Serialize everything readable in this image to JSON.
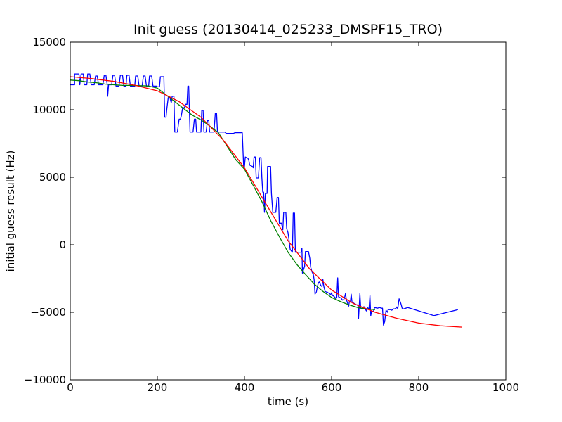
{
  "chart_data": {
    "type": "line",
    "title": "Init guess (20130414_025233_DMSPF15_TRO)",
    "xlabel": "time (s)",
    "ylabel": "initial guess result (Hz)",
    "xlim": [
      0,
      1000
    ],
    "ylim": [
      -10000,
      15000
    ],
    "x_ticks": [
      0,
      200,
      400,
      600,
      800,
      1000
    ],
    "x_tick_labels": [
      "0",
      "200",
      "400",
      "600",
      "800",
      "1000"
    ],
    "y_ticks": [
      -10000,
      -5000,
      0,
      5000,
      10000,
      15000
    ],
    "y_tick_labels": [
      "−10000",
      "−5000",
      "0",
      "5000",
      "10000",
      "15000"
    ],
    "grid": false,
    "legend": "none",
    "series": [
      {
        "color": "#0000ff",
        "points": [
          [
            0,
            11850
          ],
          [
            10,
            11850
          ],
          [
            10,
            12650
          ],
          [
            20,
            12650
          ],
          [
            22,
            11850
          ],
          [
            25,
            12650
          ],
          [
            30,
            12650
          ],
          [
            32,
            11850
          ],
          [
            38,
            11850
          ],
          [
            40,
            12650
          ],
          [
            45,
            12650
          ],
          [
            48,
            11850
          ],
          [
            55,
            11850
          ],
          [
            58,
            12500
          ],
          [
            62,
            12500
          ],
          [
            65,
            11850
          ],
          [
            75,
            11850
          ],
          [
            78,
            12550
          ],
          [
            82,
            12550
          ],
          [
            85,
            11850
          ],
          [
            86,
            11000
          ],
          [
            88,
            11850
          ],
          [
            95,
            11850
          ],
          [
            98,
            12550
          ],
          [
            102,
            12550
          ],
          [
            105,
            11750
          ],
          [
            112,
            11750
          ],
          [
            115,
            12550
          ],
          [
            120,
            12550
          ],
          [
            123,
            11750
          ],
          [
            128,
            11750
          ],
          [
            130,
            12550
          ],
          [
            135,
            12550
          ],
          [
            138,
            11750
          ],
          [
            148,
            11750
          ],
          [
            150,
            12500
          ],
          [
            155,
            12500
          ],
          [
            158,
            11750
          ],
          [
            165,
            11750
          ],
          [
            168,
            12500
          ],
          [
            172,
            12500
          ],
          [
            175,
            11750
          ],
          [
            180,
            11750
          ],
          [
            182,
            12500
          ],
          [
            187,
            12500
          ],
          [
            190,
            11750
          ],
          [
            198,
            11750
          ],
          [
            200,
            11700
          ],
          [
            205,
            11700
          ],
          [
            207,
            12450
          ],
          [
            215,
            12450
          ],
          [
            217,
            9450
          ],
          [
            220,
            9450
          ],
          [
            222,
            10100
          ],
          [
            225,
            10900
          ],
          [
            228,
            11000
          ],
          [
            232,
            10500
          ],
          [
            234,
            11000
          ],
          [
            238,
            11000
          ],
          [
            240,
            8350
          ],
          [
            246,
            8350
          ],
          [
            250,
            9300
          ],
          [
            253,
            9300
          ],
          [
            255,
            9550
          ],
          [
            258,
            10150
          ],
          [
            262,
            10150
          ],
          [
            265,
            10400
          ],
          [
            268,
            10400
          ],
          [
            270,
            11750
          ],
          [
            272,
            11750
          ],
          [
            275,
            8350
          ],
          [
            282,
            8350
          ],
          [
            285,
            9300
          ],
          [
            288,
            9300
          ],
          [
            290,
            8350
          ],
          [
            300,
            8350
          ],
          [
            302,
            9950
          ],
          [
            305,
            9950
          ],
          [
            307,
            8350
          ],
          [
            312,
            8350
          ],
          [
            315,
            9200
          ],
          [
            318,
            9200
          ],
          [
            320,
            8350
          ],
          [
            330,
            8350
          ],
          [
            333,
            9750
          ],
          [
            336,
            9750
          ],
          [
            338,
            8350
          ],
          [
            355,
            8350
          ],
          [
            358,
            8250
          ],
          [
            375,
            8250
          ],
          [
            378,
            8300
          ],
          [
            395,
            8300
          ],
          [
            398,
            5800
          ],
          [
            400,
            5800
          ],
          [
            402,
            6500
          ],
          [
            405,
            6450
          ],
          [
            408,
            6400
          ],
          [
            410,
            6250
          ],
          [
            412,
            5900
          ],
          [
            415,
            5850
          ],
          [
            418,
            5800
          ],
          [
            420,
            5700
          ],
          [
            422,
            6500
          ],
          [
            425,
            6500
          ],
          [
            427,
            4950
          ],
          [
            432,
            4950
          ],
          [
            435,
            6450
          ],
          [
            438,
            6450
          ],
          [
            440,
            4950
          ],
          [
            442,
            3900
          ],
          [
            444,
            3900
          ],
          [
            446,
            2400
          ],
          [
            448,
            3800
          ],
          [
            452,
            3800
          ],
          [
            453,
            5800
          ],
          [
            460,
            5800
          ],
          [
            462,
            3800
          ],
          [
            465,
            2400
          ],
          [
            472,
            2400
          ],
          [
            475,
            3500
          ],
          [
            478,
            3500
          ],
          [
            480,
            1600
          ],
          [
            485,
            1600
          ],
          [
            488,
            1100
          ],
          [
            490,
            2400
          ],
          [
            495,
            2400
          ],
          [
            497,
            1200
          ],
          [
            500,
            900
          ],
          [
            502,
            450
          ],
          [
            505,
            -350
          ],
          [
            510,
            -550
          ],
          [
            512,
            2350
          ],
          [
            515,
            2350
          ],
          [
            517,
            -550
          ],
          [
            530,
            -550
          ],
          [
            532,
            -250
          ],
          [
            533,
            -2100
          ],
          [
            536,
            -1800
          ],
          [
            538,
            -1600
          ],
          [
            540,
            -500
          ],
          [
            547,
            -500
          ],
          [
            550,
            -1000
          ],
          [
            552,
            -1650
          ],
          [
            555,
            -2000
          ],
          [
            558,
            -2200
          ],
          [
            560,
            -2600
          ],
          [
            562,
            -3650
          ],
          [
            565,
            -3500
          ],
          [
            568,
            -3000
          ],
          [
            570,
            -2800
          ],
          [
            572,
            -2750
          ],
          [
            575,
            -3000
          ],
          [
            578,
            -3100
          ],
          [
            580,
            -2550
          ],
          [
            582,
            -3050
          ],
          [
            585,
            -3450
          ],
          [
            588,
            -3500
          ],
          [
            590,
            -3500
          ],
          [
            592,
            -3550
          ],
          [
            595,
            -3600
          ],
          [
            598,
            -3700
          ],
          [
            600,
            -3550
          ],
          [
            602,
            -3750
          ],
          [
            605,
            -3800
          ],
          [
            608,
            -3900
          ],
          [
            610,
            -4000
          ],
          [
            612,
            -3900
          ],
          [
            614,
            -2450
          ],
          [
            616,
            -3850
          ],
          [
            619,
            -3900
          ],
          [
            622,
            -3950
          ],
          [
            625,
            -4100
          ],
          [
            628,
            -4050
          ],
          [
            630,
            -3900
          ],
          [
            632,
            -3600
          ],
          [
            634,
            -4050
          ],
          [
            636,
            -4250
          ],
          [
            639,
            -4550
          ],
          [
            641,
            -4200
          ],
          [
            643,
            -4250
          ],
          [
            645,
            -3650
          ],
          [
            647,
            -4250
          ],
          [
            650,
            -4300
          ],
          [
            652,
            -4350
          ],
          [
            655,
            -4400
          ],
          [
            657,
            -4450
          ],
          [
            659,
            -4450
          ],
          [
            661,
            -4550
          ],
          [
            662,
            -5450
          ],
          [
            665,
            -3600
          ],
          [
            667,
            -4700
          ],
          [
            670,
            -4750
          ],
          [
            673,
            -4600
          ],
          [
            676,
            -4600
          ],
          [
            678,
            -4800
          ],
          [
            680,
            -4900
          ],
          [
            682,
            -4650
          ],
          [
            684,
            -4700
          ],
          [
            686,
            -4750
          ],
          [
            688,
            -3750
          ],
          [
            690,
            -5250
          ],
          [
            692,
            -4900
          ],
          [
            696,
            -4950
          ],
          [
            698,
            -4700
          ],
          [
            700,
            -4650
          ],
          [
            705,
            -4700
          ],
          [
            710,
            -4650
          ],
          [
            715,
            -4700
          ],
          [
            717,
            -4700
          ],
          [
            719,
            -5950
          ],
          [
            722,
            -5700
          ],
          [
            725,
            -4850
          ],
          [
            728,
            -5000
          ],
          [
            730,
            -4800
          ],
          [
            735,
            -4800
          ],
          [
            738,
            -4850
          ],
          [
            740,
            -4800
          ],
          [
            742,
            -4750
          ],
          [
            745,
            -4750
          ],
          [
            748,
            -4700
          ],
          [
            750,
            -4600
          ],
          [
            752,
            -4750
          ],
          [
            755,
            -4000
          ],
          [
            758,
            -4250
          ],
          [
            760,
            -4450
          ],
          [
            762,
            -4700
          ],
          [
            765,
            -4750
          ],
          [
            770,
            -4700
          ],
          [
            775,
            -4650
          ],
          [
            835,
            -5250
          ],
          [
            890,
            -4800
          ]
        ]
      },
      {
        "color": "#008000",
        "points": [
          [
            0,
            12200
          ],
          [
            20,
            12150
          ],
          [
            40,
            12050
          ],
          [
            60,
            12000
          ],
          [
            80,
            11900
          ],
          [
            100,
            11850
          ],
          [
            120,
            11800
          ],
          [
            140,
            11800
          ],
          [
            160,
            11780
          ],
          [
            180,
            11760
          ],
          [
            200,
            11600
          ],
          [
            220,
            11100
          ],
          [
            240,
            10600
          ],
          [
            260,
            10100
          ],
          [
            280,
            9600
          ],
          [
            300,
            9250
          ],
          [
            320,
            8800
          ],
          [
            340,
            8300
          ],
          [
            360,
            7300
          ],
          [
            380,
            6300
          ],
          [
            400,
            5600
          ],
          [
            420,
            4400
          ],
          [
            440,
            3200
          ],
          [
            460,
            1800
          ],
          [
            480,
            600
          ],
          [
            500,
            -550
          ],
          [
            520,
            -1450
          ],
          [
            540,
            -2200
          ],
          [
            560,
            -2900
          ],
          [
            580,
            -3450
          ],
          [
            600,
            -3900
          ],
          [
            620,
            -4200
          ],
          [
            640,
            -4450
          ],
          [
            660,
            -4650
          ],
          [
            680,
            -4750
          ],
          [
            700,
            -4800
          ]
        ]
      },
      {
        "color": "#ff0000",
        "points": [
          [
            0,
            12450
          ],
          [
            50,
            12300
          ],
          [
            100,
            12100
          ],
          [
            150,
            11800
          ],
          [
            200,
            11400
          ],
          [
            250,
            10600
          ],
          [
            300,
            9450
          ],
          [
            350,
            7800
          ],
          [
            400,
            5700
          ],
          [
            450,
            3000
          ],
          [
            500,
            300
          ],
          [
            550,
            -1800
          ],
          [
            600,
            -3350
          ],
          [
            650,
            -4350
          ],
          [
            700,
            -5000
          ],
          [
            750,
            -5450
          ],
          [
            800,
            -5800
          ],
          [
            850,
            -6000
          ],
          [
            900,
            -6100
          ]
        ]
      }
    ]
  }
}
